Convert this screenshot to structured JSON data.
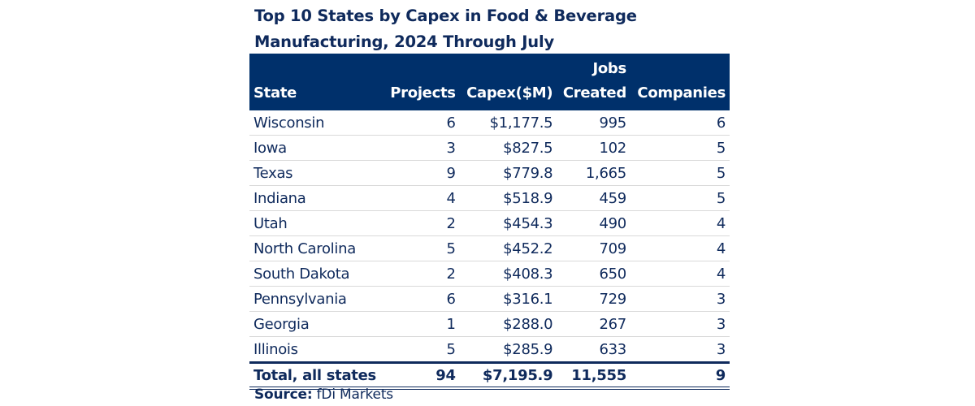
{
  "title_line1": "Top 10 States by Capex in Food & Beverage",
  "title_line2": "Manufacturing, 2024 Through July",
  "headers": {
    "state": "State",
    "projects": "Projects",
    "capex": "Capex($M)",
    "jobs_top": "Jobs",
    "jobs_bottom": "Created",
    "companies": "Companies"
  },
  "rows": [
    [
      "Wisconsin",
      "6",
      "$1,177.5",
      "995",
      "6"
    ],
    [
      "Iowa",
      "3",
      "$827.5",
      "102",
      "5"
    ],
    [
      "Texas",
      "9",
      "$779.8",
      "1,665",
      "5"
    ],
    [
      "Indiana",
      "4",
      "$518.9",
      "459",
      "5"
    ],
    [
      "Utah",
      "2",
      "$454.3",
      "490",
      "4"
    ],
    [
      "North Carolina",
      "5",
      "$452.2",
      "709",
      "4"
    ],
    [
      "South Dakota",
      "2",
      "$408.3",
      "650",
      "4"
    ],
    [
      "Pennsylvania",
      "6",
      "$316.1",
      "729",
      "3"
    ],
    [
      "Georgia",
      "1",
      "$288.0",
      "267",
      "3"
    ],
    [
      "Illinois",
      "5",
      "$285.9",
      "633",
      "3"
    ]
  ],
  "total": [
    "Total, all states",
    "94",
    "$7,195.9",
    "11,555",
    "9"
  ],
  "source_label": "Source:",
  "source_value": "fDi Markets",
  "colors": {
    "header_bg": "#00306b",
    "text": "#0f2a5c"
  }
}
